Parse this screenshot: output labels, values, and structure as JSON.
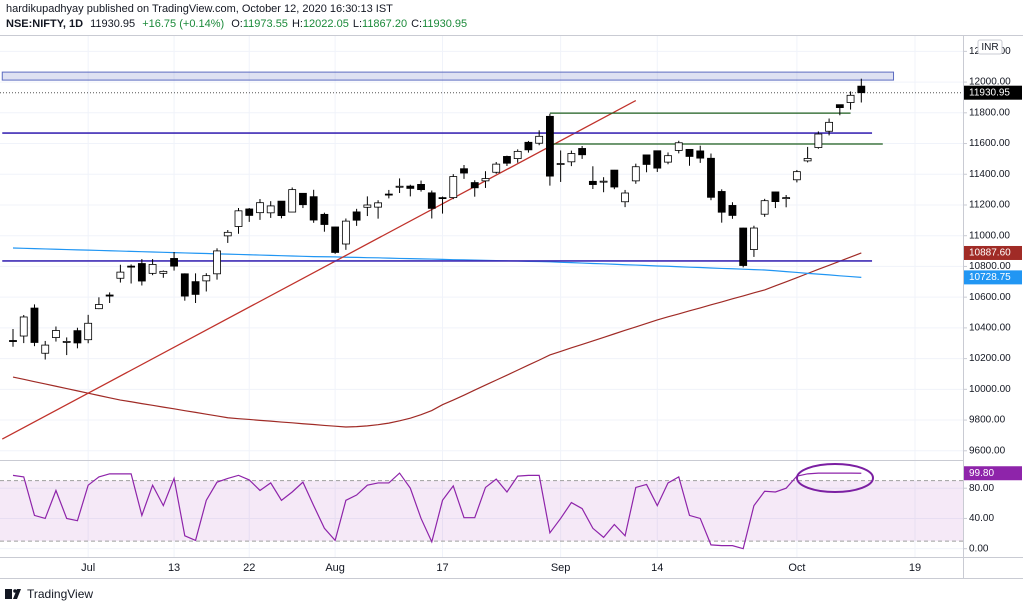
{
  "header": {
    "published": "hardikupadhyay published on TradingView.com, October 12, 2020 16:30:13 IST",
    "symbol": "NSE:NIFTY, 1D",
    "last": "11930.95",
    "change": "+16.75 (+0.14%)",
    "ohlc": [
      {
        "key": "O:",
        "value": "11973.55"
      },
      {
        "key": "H:",
        "value": "12022.05"
      },
      {
        "key": "L:",
        "value": "11867.20"
      },
      {
        "key": "C:",
        "value": "11930.95"
      }
    ]
  },
  "footer": {
    "brand": "TradingView"
  },
  "chart_data": [
    {
      "type": "candlestick",
      "currency": "INR",
      "categories": [
        null,
        null,
        null,
        null,
        null,
        null,
        null,
        "Jul",
        null,
        null,
        null,
        null,
        null,
        null,
        null,
        "13",
        null,
        null,
        null,
        null,
        null,
        null,
        "22",
        null,
        null,
        null,
        null,
        null,
        null,
        null,
        "Aug",
        null,
        null,
        null,
        null,
        null,
        null,
        null,
        null,
        null,
        "17",
        null,
        null,
        null,
        null,
        null,
        null,
        null,
        null,
        null,
        null,
        "Sep",
        null,
        null,
        null,
        null,
        null,
        null,
        null,
        null,
        "14",
        null,
        null,
        null,
        null,
        null,
        null,
        null,
        null,
        null,
        null,
        null,
        null,
        "Oct",
        null,
        null,
        null,
        null,
        null,
        null,
        null,
        null,
        null,
        null,
        "19"
      ],
      "open": [
        10318,
        10347,
        10529,
        10235,
        10337,
        10311,
        10382,
        10323,
        10525,
        10614,
        10723,
        10802,
        10819,
        10755,
        10755,
        10852,
        10752,
        10701,
        10706,
        10752,
        10999,
        11060,
        11174,
        11150,
        11149,
        11225,
        11154,
        11276,
        11254,
        11139,
        11057,
        10946,
        11155,
        11185,
        11186,
        11271,
        11322,
        11323,
        11334,
        11279,
        11248,
        11248,
        11436,
        11346,
        11357,
        11413,
        11516,
        11502,
        11608,
        11602,
        11777,
        11464,
        11481,
        11568,
        11354,
        11351,
        11427,
        11221,
        11357,
        11526,
        11553,
        11479,
        11555,
        11562,
        11552,
        11504,
        11288,
        11197,
        11050,
        10910,
        11140,
        11285,
        11244,
        11364,
        11487,
        11574,
        11680,
        11853,
        11867,
        11973.55,
        null,
        null,
        null,
        null,
        null
      ],
      "high": [
        10393,
        10484,
        10553,
        10315,
        10409,
        10338,
        10401,
        10485,
        10599,
        10631,
        10811,
        10813,
        10848,
        10848,
        10774,
        10894,
        10755,
        10755,
        10756,
        10918,
        11037,
        11180,
        11180,
        11239,
        11225,
        11225,
        11314,
        11276,
        11299,
        11150,
        11058,
        11112,
        11175,
        11256,
        11231,
        11298,
        11373,
        11332,
        11359,
        11294,
        11255,
        11401,
        11460,
        11361,
        11420,
        11480,
        11521,
        11562,
        11617,
        11686,
        11794,
        11555,
        11554,
        11584,
        11452,
        11381,
        11428,
        11298,
        11469,
        11526,
        11553,
        11542,
        11618,
        11564,
        11586,
        11535,
        11302,
        11218,
        11052,
        11065,
        11240,
        11287,
        11265,
        11428,
        11578,
        11679,
        11763,
        11853,
        11939,
        12022.05,
        null,
        null,
        null,
        null,
        null
      ],
      "low": [
        10277,
        10301,
        10281,
        10194,
        10311,
        10223,
        10267,
        10300,
        10522,
        10562,
        10695,
        10689,
        10676,
        10743,
        10726,
        10773,
        10577,
        10562,
        10637,
        10714,
        10953,
        11013,
        11090,
        11103,
        11116,
        11113,
        11154,
        11180,
        11084,
        11026,
        10882,
        10908,
        11064,
        11128,
        11111,
        11243,
        11278,
        11256,
        11287,
        11112,
        11144,
        11238,
        11370,
        11254,
        11311,
        11403,
        11454,
        11475,
        11541,
        11589,
        11326,
        11350,
        11453,
        11500,
        11304,
        11283,
        11303,
        11186,
        11338,
        11413,
        11415,
        11465,
        11536,
        11455,
        11474,
        11231,
        11085,
        11110,
        10794,
        10862,
        11123,
        11180,
        11185,
        11347,
        11477,
        11566,
        11653,
        11784,
        11821,
        11867.2,
        null,
        null,
        null,
        null,
        null
      ],
      "close": [
        10311,
        10471,
        10305,
        10288,
        10383,
        10312,
        10302,
        10430,
        10552,
        10607,
        10763,
        10799,
        10705,
        10813,
        10768,
        10802,
        10607,
        10618,
        10740,
        10901,
        11022,
        11162,
        11132,
        11215,
        11194,
        11131,
        11300,
        11202,
        11102,
        11073,
        10891,
        11095,
        11101,
        11200,
        11214,
        11270,
        11322,
        11308,
        11300,
        11178,
        11247,
        11385,
        11408,
        11312,
        11372,
        11466,
        11472,
        11549,
        11559,
        11647,
        11388,
        11470,
        11535,
        11527,
        11333,
        11355,
        11317,
        11278,
        11449,
        11464,
        11440,
        11521,
        11605,
        11516,
        11505,
        11250,
        11153,
        11132,
        10806,
        11050,
        11228,
        11222,
        11248,
        11417,
        11503,
        11662,
        11738,
        11834,
        11914,
        11930.95,
        null,
        null,
        null,
        null,
        null
      ],
      "up_color": "#ffffff",
      "down_color": "#000000",
      "series": [
        {
          "color": "#a02b26",
          "values": [
            10080,
            10065,
            10050,
            10035,
            10020,
            10005,
            9990,
            9975,
            9960,
            9945,
            9930,
            9919,
            9907,
            9896,
            9884,
            9873,
            9861,
            9850,
            9838,
            9827,
            9815,
            9809,
            9804,
            9798,
            9793,
            9787,
            9782,
            9776,
            9771,
            9765,
            9760,
            9755,
            9757,
            9762,
            9770,
            9780,
            9795,
            9812,
            9835,
            9862,
            9900,
            9930,
            9962,
            9995,
            10028,
            10060,
            10092,
            10125,
            10158,
            10190,
            10224,
            10247,
            10270,
            10292,
            10315,
            10338,
            10361,
            10384,
            10406,
            10429,
            10452,
            10472,
            10491,
            10511,
            10530,
            10550,
            10569,
            10589,
            10608,
            10628,
            10647,
            10674,
            10700,
            10727,
            10754,
            10781,
            10807,
            10834,
            10861,
            10887.6,
            null,
            null,
            null,
            null,
            null
          ],
          "value_labels": [
            null,
            null,
            null,
            null,
            null,
            null,
            null,
            null,
            null,
            null,
            null,
            null,
            null,
            null,
            null,
            null,
            null,
            null,
            null,
            null,
            null,
            null,
            null,
            null,
            null,
            null,
            null,
            null,
            null,
            null,
            null,
            null,
            null,
            null,
            null,
            null,
            null,
            null,
            null,
            null,
            null,
            null,
            null,
            null,
            null,
            null,
            null,
            null,
            null,
            null,
            null,
            null,
            null,
            null,
            null,
            null,
            null,
            null,
            null,
            null,
            null,
            null,
            null,
            null,
            null,
            null,
            null,
            null,
            null,
            null,
            null,
            null,
            null,
            null,
            null,
            null,
            null,
            null,
            null,
            "10887.60",
            null,
            null,
            null,
            null,
            null
          ]
        },
        {
          "color": "#2196f3",
          "values": [
            10920,
            10918,
            10916,
            10914,
            10912,
            10910,
            10908,
            10906,
            10904,
            10902,
            10900,
            10898,
            10896,
            10894,
            10892,
            10890,
            10888,
            10886,
            10884,
            10882,
            10880,
            10878,
            10876,
            10874,
            10872,
            10870,
            10868,
            10866,
            10864,
            10863,
            10862,
            10860,
            10859,
            10857,
            10856,
            10854,
            10852,
            10851,
            10849,
            10848,
            10846,
            10844,
            10843,
            10841,
            10840,
            10838,
            10836,
            10835,
            10833,
            10832,
            10830,
            10827,
            10825,
            10822,
            10819,
            10817,
            10814,
            10811,
            10809,
            10806,
            10803,
            10801,
            10798,
            10795,
            10793,
            10790,
            10787,
            10785,
            10782,
            10779,
            10777,
            10772,
            10766,
            10761,
            10755,
            10750,
            10745,
            10739,
            10734,
            10728.75,
            null,
            null,
            null,
            null,
            null
          ],
          "value_labels": [
            null,
            null,
            null,
            null,
            null,
            null,
            null,
            null,
            null,
            null,
            null,
            null,
            null,
            null,
            null,
            null,
            null,
            null,
            null,
            null,
            null,
            null,
            null,
            null,
            null,
            null,
            null,
            null,
            null,
            null,
            null,
            null,
            null,
            null,
            null,
            null,
            null,
            null,
            null,
            null,
            null,
            null,
            null,
            null,
            null,
            null,
            null,
            null,
            null,
            null,
            null,
            null,
            null,
            null,
            null,
            null,
            null,
            null,
            null,
            null,
            null,
            null,
            null,
            null,
            null,
            null,
            null,
            null,
            null,
            null,
            null,
            null,
            null,
            null,
            null,
            null,
            null,
            null,
            null,
            "10728.75",
            null,
            null,
            null,
            null,
            null
          ]
        }
      ],
      "zones": [
        {
          "x": [
            -1,
            82
          ],
          "values": [
            12013,
            12065
          ],
          "color": "#5c6bc0"
        }
      ],
      "hlines": [
        {
          "x": [
            -1,
            80
          ],
          "value": 11668,
          "color": "#3f2bb5"
        },
        {
          "x": [
            -1,
            80
          ],
          "value": 10836,
          "color": "#3f2bb5"
        }
      ],
      "segments": [
        {
          "x": [
            -1,
            58
          ],
          "values": [
            9676,
            11880
          ],
          "color": "#c0322b"
        },
        {
          "x": [
            50,
            78
          ],
          "values": [
            11798,
            11798
          ],
          "color": "#1e5e1e"
        },
        {
          "x": [
            50,
            81
          ],
          "values": [
            11597,
            11597
          ],
          "color": "#1e5e1e"
        }
      ],
      "ylim": [
        9540,
        12300
      ],
      "yticks": [
        {
          "value": 9600,
          "label": "9600.00"
        },
        {
          "value": 9800,
          "label": "9800.00"
        },
        {
          "value": 10000,
          "label": "10000.00"
        },
        {
          "value": 10200,
          "label": "10200.00"
        },
        {
          "value": 10400,
          "label": "10400.00"
        },
        {
          "value": 10600,
          "label": "10600.00"
        },
        {
          "value": 10800,
          "label": "10800.00"
        },
        {
          "value": 11000,
          "label": "11000.00"
        },
        {
          "value": 11200,
          "label": "11200.00"
        },
        {
          "value": 11400,
          "label": "11400.00"
        },
        {
          "value": 11600,
          "label": "11600.00"
        },
        {
          "value": 11800,
          "label": "11800.00"
        },
        {
          "value": 12000,
          "label": "12000.00"
        },
        {
          "value": 12200,
          "label": "12200.00"
        }
      ],
      "grid": true
    },
    {
      "type": "line",
      "color": "#8e24aa",
      "values": [
        97,
        95,
        44,
        40,
        77,
        40,
        37,
        84,
        95,
        99,
        99,
        99,
        44,
        84,
        57,
        93,
        17,
        11,
        64,
        88,
        93,
        97,
        91,
        77,
        87,
        64,
        75,
        88,
        57,
        27,
        11,
        64,
        71,
        84,
        87,
        87,
        100,
        80,
        40,
        9,
        64,
        83,
        41,
        41,
        81,
        92,
        75,
        96,
        97,
        97,
        21,
        40,
        61,
        53,
        27,
        15,
        32,
        17,
        81,
        85,
        57,
        87,
        95,
        44,
        40,
        5,
        4,
        4,
        0,
        57,
        76,
        75,
        80,
        96,
        99,
        100,
        100,
        100,
        100,
        99.8,
        null,
        null,
        null,
        null,
        null
      ],
      "value_labels": [
        null,
        null,
        null,
        null,
        null,
        null,
        null,
        null,
        null,
        null,
        null,
        null,
        null,
        null,
        null,
        null,
        null,
        null,
        null,
        null,
        null,
        null,
        null,
        null,
        null,
        null,
        null,
        null,
        null,
        null,
        null,
        null,
        null,
        null,
        null,
        null,
        null,
        null,
        null,
        null,
        null,
        null,
        null,
        null,
        null,
        null,
        null,
        null,
        null,
        null,
        null,
        null,
        null,
        null,
        null,
        null,
        null,
        null,
        null,
        null,
        null,
        null,
        null,
        null,
        null,
        null,
        null,
        null,
        null,
        null,
        null,
        null,
        null,
        null,
        null,
        null,
        null,
        null,
        null,
        "99.80",
        null,
        null,
        null,
        null,
        null
      ],
      "bands": [
        90,
        10
      ],
      "ylim": [
        -11,
        116
      ],
      "yticks": [
        {
          "value": 0,
          "label": "0.00"
        },
        {
          "value": 40,
          "label": "40.00"
        },
        {
          "value": 80,
          "label": "80.00"
        }
      ],
      "grid": true
    }
  ]
}
